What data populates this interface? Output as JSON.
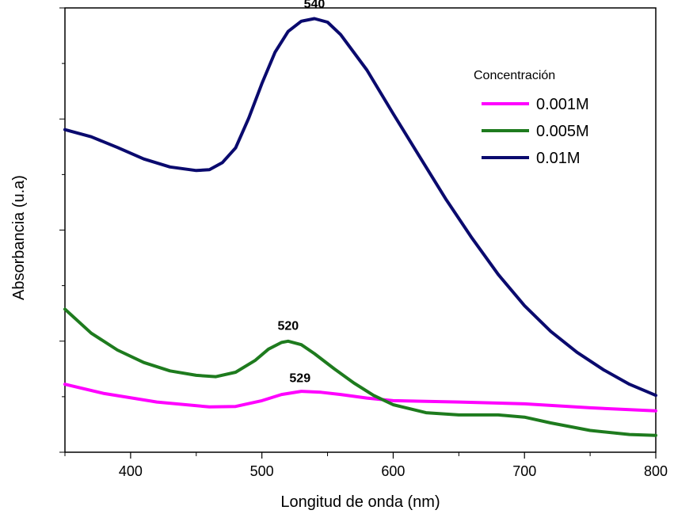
{
  "chart_data": {
    "type": "line",
    "xlabel": "Longitud de onda (nm)",
    "ylabel": "Absorbancia (u.a)",
    "xlim": [
      350,
      800
    ],
    "ylim": [
      0,
      1
    ],
    "x_ticks": [
      400,
      500,
      600,
      700,
      800
    ],
    "y_tick_labels_shown": false,
    "grid": false,
    "legend": {
      "title": "Concentración",
      "placement": "top-right"
    },
    "series": [
      {
        "name": "0.001M",
        "color": "#ff00ff",
        "x": [
          350,
          380,
          420,
          460,
          480,
          500,
          515,
          530,
          545,
          560,
          580,
          600,
          650,
          700,
          750,
          800
        ],
        "y": [
          0.153,
          0.132,
          0.113,
          0.102,
          0.103,
          0.116,
          0.13,
          0.137,
          0.135,
          0.13,
          0.122,
          0.116,
          0.113,
          0.109,
          0.1,
          0.093
        ]
      },
      {
        "name": "0.005M",
        "color": "#1e7b1e",
        "x": [
          350,
          370,
          390,
          410,
          430,
          450,
          465,
          480,
          495,
          505,
          515,
          520,
          530,
          540,
          555,
          570,
          585,
          600,
          625,
          650,
          680,
          700,
          720,
          750,
          780,
          800
        ],
        "y": [
          0.322,
          0.268,
          0.23,
          0.202,
          0.183,
          0.173,
          0.17,
          0.18,
          0.207,
          0.232,
          0.247,
          0.25,
          0.242,
          0.222,
          0.188,
          0.156,
          0.128,
          0.107,
          0.089,
          0.084,
          0.084,
          0.079,
          0.066,
          0.049,
          0.04,
          0.038
        ]
      },
      {
        "name": "0.01M",
        "color": "#0a0a6e",
        "x": [
          350,
          370,
          390,
          410,
          430,
          450,
          460,
          470,
          480,
          490,
          500,
          510,
          520,
          530,
          540,
          550,
          560,
          580,
          600,
          620,
          640,
          660,
          680,
          700,
          720,
          740,
          760,
          780,
          800
        ],
        "y": [
          0.726,
          0.71,
          0.686,
          0.66,
          0.642,
          0.634,
          0.636,
          0.652,
          0.685,
          0.752,
          0.83,
          0.9,
          0.947,
          0.97,
          0.976,
          0.968,
          0.94,
          0.86,
          0.762,
          0.666,
          0.57,
          0.482,
          0.4,
          0.33,
          0.272,
          0.225,
          0.186,
          0.153,
          0.128
        ]
      }
    ],
    "annotations": [
      {
        "text": "540",
        "x": 540,
        "y": 1.0
      },
      {
        "text": "520",
        "x": 520,
        "y": 0.275
      },
      {
        "text": "529",
        "x": 529,
        "y": 0.158
      }
    ]
  }
}
